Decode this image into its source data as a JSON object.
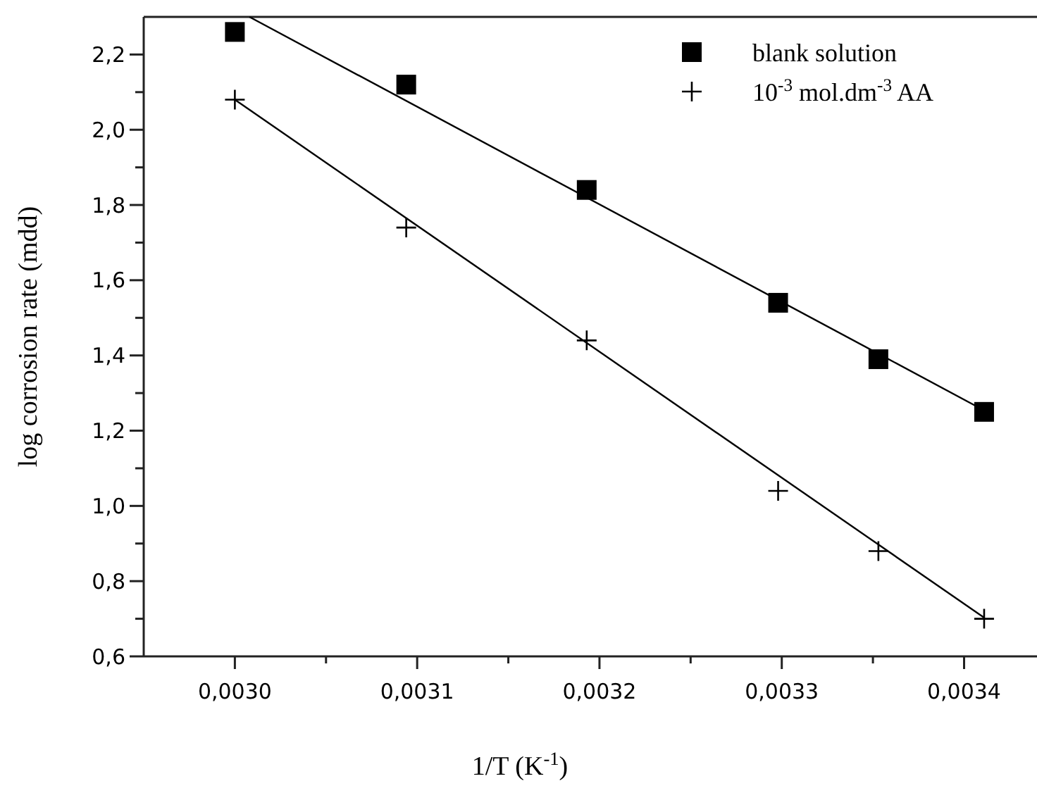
{
  "chart_data": {
    "type": "scatter",
    "xlabel": "1/T (K$^{-1}$)",
    "ylabel": "log corrosion rate (mdd)",
    "xlim": [
      0.00295,
      0.00344
    ],
    "ylim": [
      0.6,
      2.3
    ],
    "xticks": [
      {
        "value": 0.003,
        "label": "0,0030"
      },
      {
        "value": 0.00305,
        "label": null
      },
      {
        "value": 0.0031,
        "label": "0,0031"
      },
      {
        "value": 0.00315,
        "label": null
      },
      {
        "value": 0.0032,
        "label": "0,0032"
      },
      {
        "value": 0.00325,
        "label": null
      },
      {
        "value": 0.0033,
        "label": "0,0033"
      },
      {
        "value": 0.00335,
        "label": null
      },
      {
        "value": 0.0034,
        "label": "0,0034"
      }
    ],
    "yticks": [
      {
        "value": 0.6,
        "label": "0,6"
      },
      {
        "value": 0.7,
        "label": null
      },
      {
        "value": 0.8,
        "label": "0,8"
      },
      {
        "value": 0.9,
        "label": null
      },
      {
        "value": 1.0,
        "label": "1,0"
      },
      {
        "value": 1.1,
        "label": null
      },
      {
        "value": 1.2,
        "label": "1,2"
      },
      {
        "value": 1.3,
        "label": null
      },
      {
        "value": 1.4,
        "label": "1,4"
      },
      {
        "value": 1.5,
        "label": null
      },
      {
        "value": 1.6,
        "label": "1,6"
      },
      {
        "value": 1.7,
        "label": null
      },
      {
        "value": 1.8,
        "label": "1,8"
      },
      {
        "value": 1.9,
        "label": null
      },
      {
        "value": 2.0,
        "label": "2,0"
      },
      {
        "value": 2.1,
        "label": null
      },
      {
        "value": 2.2,
        "label": "2,2"
      }
    ],
    "grid": false,
    "legend": "top right",
    "series": [
      {
        "name": "blank solution",
        "color": "#000000",
        "marker": "square",
        "x": [
          0.003,
          0.003094,
          0.003193,
          0.003298,
          0.003353,
          0.003411
        ],
        "values": [
          2.26,
          2.12,
          1.84,
          1.54,
          1.39,
          1.25
        ]
      },
      {
        "name": "10$^{-3}$ mol.dm$^{-3}$ AA",
        "color": "#000000",
        "marker": "cross",
        "x": [
          0.003,
          0.003094,
          0.003193,
          0.003298,
          0.003353,
          0.003411
        ],
        "values": [
          2.08,
          1.74,
          1.44,
          1.04,
          0.88,
          0.7
        ]
      },
      {
        "type": "line",
        "color": "#000000",
        "marker": "none",
        "line_style": "solid",
        "x": [
          0.003008,
          0.003411
        ],
        "values": [
          2.3,
          1.254
        ]
      },
      {
        "type": "line",
        "color": "#000000",
        "marker": "none",
        "line_style": "solid",
        "x": [
          0.003,
          0.003411
        ],
        "values": [
          2.08,
          0.703
        ]
      }
    ]
  }
}
